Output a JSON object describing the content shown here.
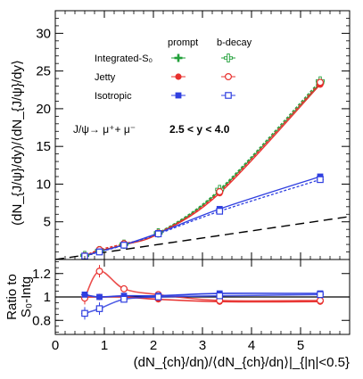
{
  "chart_data": [
    {
      "type": "scatter",
      "panel": "main",
      "ylabel": "(dN_{J/ψ}/dy)/⟨dN_{J/ψ}/dy⟩",
      "xlim": [
        0,
        6
      ],
      "ylim": [
        0,
        33
      ],
      "x_ticks": [
        0,
        1,
        2,
        3,
        4,
        5
      ],
      "y_ticks": [
        5,
        10,
        15,
        20,
        25,
        30
      ],
      "x_tick_labels": [
        "0",
        "1",
        "2",
        "3",
        "4",
        "5"
      ],
      "y_tick_labels": [
        "5",
        "10",
        "15",
        "20",
        "25",
        "30"
      ],
      "legend": {
        "column_headers": [
          "prompt",
          "b-decay"
        ],
        "rows": [
          {
            "label": "Integrated-S₀",
            "color": "#22a03a",
            "marker": "plus"
          },
          {
            "label": "Jetty",
            "color": "#e8302e",
            "marker": "circle"
          },
          {
            "label": "Isotropic",
            "color": "#2f3fe0",
            "marker": "square"
          }
        ]
      },
      "annotation_process": "J/ψ→  μ⁺+  μ⁻",
      "annotation_range": "2.5 < y < 4.0",
      "x": [
        0.6,
        0.9,
        1.4,
        2.1,
        3.35,
        5.4
      ],
      "series": [
        {
          "name": "Integrated-S₀ prompt",
          "color": "#22a03a",
          "marker": "plus-filled",
          "values": [
            0.5,
            1.1,
            1.95,
            3.45,
            9.1,
            23.4
          ]
        },
        {
          "name": "Integrated-S₀ b-decay",
          "color": "#22a03a",
          "marker": "plus-open",
          "values": [
            0.55,
            1.2,
            2.05,
            3.55,
            9.3,
            23.7
          ]
        },
        {
          "name": "Jetty prompt",
          "color": "#e8302e",
          "marker": "circle-filled",
          "values": [
            0.45,
            1.15,
            1.95,
            3.4,
            8.8,
            23.2
          ]
        },
        {
          "name": "Jetty b-decay",
          "color": "#e8302e",
          "marker": "circle-open",
          "values": [
            0.5,
            1.3,
            2.1,
            3.5,
            9.0,
            23.5
          ]
        },
        {
          "name": "Isotropic prompt",
          "color": "#2f3fe0",
          "marker": "square-filled",
          "values": [
            0.5,
            1.05,
            1.95,
            3.5,
            6.7,
            11.0
          ]
        },
        {
          "name": "Isotropic b-decay",
          "color": "#2f3fe0",
          "marker": "square-open",
          "values": [
            0.45,
            1.0,
            1.9,
            3.4,
            6.4,
            10.6
          ]
        }
      ],
      "reference_line": {
        "x": [
          0,
          6
        ],
        "y": [
          0,
          5.7
        ],
        "style": "dashed"
      }
    },
    {
      "type": "scatter",
      "panel": "ratio",
      "ylabel_line1": "Ratio to",
      "ylabel_line2": "S₀-Intg",
      "xlabel": "(dN_{ch}/dη)/⟨dN_{ch}/dη⟩|_{|η|<0.5}",
      "xlim": [
        0,
        6
      ],
      "ylim": [
        0.68,
        1.32
      ],
      "x_ticks": [
        0,
        1,
        2,
        3,
        4,
        5
      ],
      "y_ticks": [
        0.8,
        1.0,
        1.2
      ],
      "x_tick_labels": [
        "0",
        "1",
        "2",
        "3",
        "4",
        "5"
      ],
      "y_tick_labels": [
        "0.8",
        "1",
        "1.2"
      ],
      "reference_y": 1.0,
      "x": [
        0.6,
        0.9,
        1.4,
        2.1,
        3.35,
        5.4
      ],
      "series": [
        {
          "name": "Jetty prompt ratio",
          "color": "#e8302e",
          "marker": "circle-filled",
          "values": [
            1.0,
            1.0,
            1.0,
            0.98,
            0.96,
            0.96
          ]
        },
        {
          "name": "Jetty b-decay ratio",
          "color": "#e8302e",
          "marker": "circle-open",
          "values": [
            0.99,
            1.22,
            1.07,
            1.02,
            0.97,
            0.97
          ]
        },
        {
          "name": "Isotropic prompt ratio",
          "color": "#2f3fe0",
          "marker": "square-filled",
          "values": [
            1.02,
            1.0,
            1.01,
            1.01,
            1.03,
            1.03
          ]
        },
        {
          "name": "Isotropic b-decay ratio",
          "color": "#2f3fe0",
          "marker": "square-open",
          "values": [
            0.86,
            0.9,
            0.98,
            1.0,
            1.01,
            1.02
          ]
        }
      ]
    }
  ]
}
